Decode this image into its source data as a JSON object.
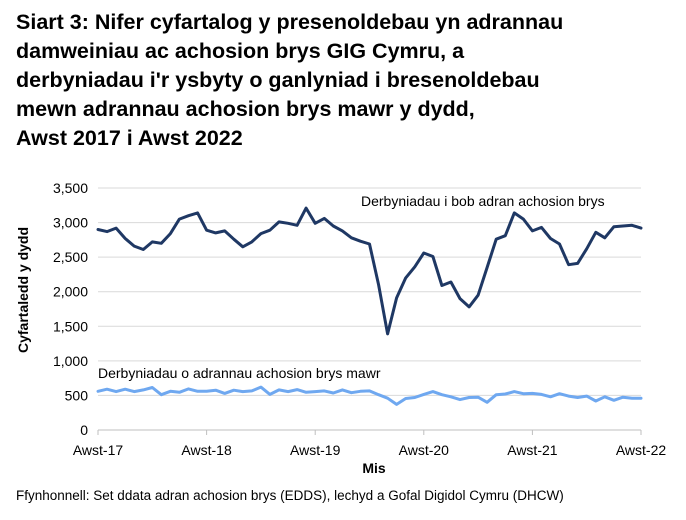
{
  "title_lines": [
    "Siart 3: Nifer cyfartalog y presenoldebau yn adrannau",
    "damweiniau ac achosion brys GIG Cymru, a",
    "derbyniadau i'r ysbyty o ganlyniad i bresenoldebau",
    "mewn adrannau achosion brys mawr y dydd,",
    "Awst 2017 i Awst 2022"
  ],
  "source": "Ffynhonnell: Set ddata adran achosion brys (EDDS), lechyd a Gofal Digidol Cymru (DHCW)",
  "chart_data": {
    "type": "line",
    "title": "Siart 3: Nifer cyfartalog y presenoldebau yn adrannau damweiniau ac achosion brys GIG Cymru, a derbyniadau i'r ysbyty o ganlyniad i bresenoldebau mewn adrannau achosion brys mawr y dydd, Awst 2017 i Awst 2022",
    "xlabel": "Mis",
    "ylabel": "Cyfartaledd y dydd",
    "ylim": [
      0,
      3500
    ],
    "yticks": [
      0,
      500,
      1000,
      1500,
      2000,
      2500,
      3000,
      3500
    ],
    "ytick_labels": [
      "0",
      "500",
      "1,000",
      "1,500",
      "2,000",
      "2,500",
      "3,000",
      "3,500"
    ],
    "xticks": [
      0,
      12,
      24,
      36,
      48,
      60
    ],
    "xtick_labels": [
      "Awst-17",
      "Awst-18",
      "Awst-19",
      "Awst-20",
      "Awst-21",
      "Awst-22"
    ],
    "grid": true,
    "series": [
      {
        "name": "Derbyniadau i bob adran achosion brys",
        "color": "#1f3864",
        "values": [
          2900,
          2870,
          2920,
          2770,
          2660,
          2610,
          2720,
          2700,
          2840,
          3050,
          3100,
          3140,
          2890,
          2850,
          2880,
          2760,
          2650,
          2720,
          2840,
          2890,
          3010,
          2990,
          2960,
          3210,
          2990,
          3060,
          2950,
          2880,
          2780,
          2730,
          2690,
          2100,
          1390,
          1910,
          2200,
          2360,
          2560,
          2510,
          2090,
          2140,
          1900,
          1780,
          1950,
          2350,
          2760,
          2810,
          3140,
          3050,
          2880,
          2930,
          2770,
          2690,
          2390,
          2410,
          2620,
          2860,
          2780,
          2940,
          2950,
          2960,
          2920
        ]
      },
      {
        "name": "Derbyniadau o adrannau achosion brys mawr",
        "color": "#6fa8f0",
        "values": [
          560,
          590,
          555,
          590,
          555,
          580,
          615,
          510,
          560,
          545,
          595,
          560,
          560,
          575,
          530,
          575,
          555,
          565,
          620,
          515,
          580,
          555,
          585,
          545,
          555,
          565,
          535,
          580,
          540,
          560,
          565,
          510,
          460,
          370,
          455,
          470,
          515,
          555,
          510,
          480,
          440,
          470,
          475,
          400,
          510,
          520,
          555,
          525,
          530,
          515,
          480,
          525,
          490,
          470,
          490,
          420,
          480,
          430,
          475,
          460,
          460
        ]
      }
    ],
    "annotations": [
      {
        "text": "Derbyniadau i bob adran achosion brys",
        "series": 0
      },
      {
        "text": "Derbyniadau o adrannau achosion brys mawr",
        "series": 1
      }
    ]
  }
}
